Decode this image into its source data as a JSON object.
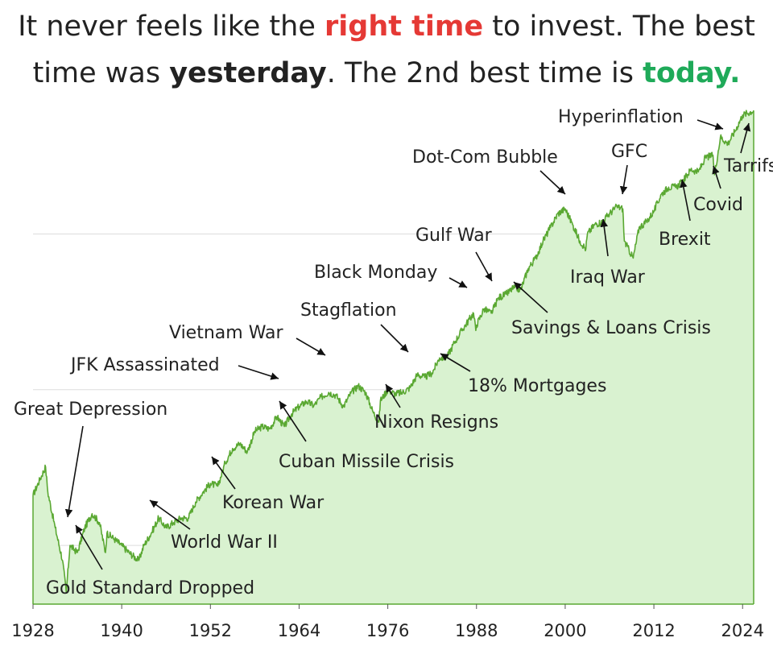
{
  "title": {
    "line1": {
      "prefix": "It never feels like the",
      "highlight": "right time",
      "suffix": "to invest. The best"
    },
    "line2": {
      "prefix": "time was",
      "emphasis": "yesterday",
      "middle": ". The 2nd best time is",
      "highlight": "today.",
      "suffix": ""
    },
    "colors": {
      "right_time": "#e53935",
      "today": "#1faa59"
    }
  },
  "chart_data": {
    "type": "area",
    "title": "",
    "xlabel": "",
    "ylabel": "",
    "xlim": [
      1928,
      2025.5
    ],
    "ylog": true,
    "grid": "horizontal",
    "legend": "none",
    "colors": {
      "line": "#5aa832",
      "fill": "#d9f2d0",
      "grid": "#dddddd",
      "axis": "#5aa832"
    },
    "x_ticks": [
      1928,
      1940,
      1952,
      1964,
      1976,
      1988,
      2000,
      2012,
      2024
    ],
    "series": [
      {
        "x": [
          1928,
          1929,
          1929.7,
          1930,
          1931,
          1932,
          1932.5,
          1933,
          1934,
          1935,
          1936,
          1937,
          1937.8,
          1938,
          1939,
          1940,
          1941,
          1942.3,
          1943,
          1944,
          1945,
          1946,
          1947,
          1948,
          1949,
          1950,
          1951,
          1952,
          1953,
          1954,
          1955,
          1956,
          1957,
          1958,
          1959,
          1960,
          1961,
          1962,
          1963,
          1964,
          1965,
          1966,
          1967,
          1968,
          1969,
          1970,
          1971,
          1972,
          1973,
          1974,
          1974.8,
          1975,
          1976,
          1977,
          1978,
          1979,
          1980,
          1981,
          1982,
          1983,
          1984,
          1985,
          1986,
          1987.6,
          1987.9,
          1988,
          1989,
          1990,
          1991,
          1992,
          1993,
          1994,
          1995,
          1996,
          1997,
          1998,
          1999,
          2000,
          2001,
          2002,
          2002.8,
          2003,
          2004,
          2005,
          2006,
          2007,
          2007.8,
          2008,
          2009.2,
          2010,
          2011,
          2012,
          2013,
          2014,
          2015,
          2016,
          2017,
          2018,
          2019,
          2020,
          2020.2,
          2021,
          2022,
          2023,
          2024,
          2025.5
        ],
        "values": [
          21,
          27,
          32,
          22,
          13,
          8,
          5,
          10,
          9,
          13,
          16,
          14,
          9,
          12,
          11,
          10,
          9,
          8,
          10,
          12,
          15,
          13,
          14,
          15,
          15,
          19,
          22,
          25,
          24,
          34,
          42,
          45,
          40,
          54,
          58,
          56,
          67,
          58,
          70,
          78,
          84,
          79,
          90,
          96,
          92,
          78,
          95,
          106,
          96,
          72,
          62,
          85,
          100,
          94,
          96,
          103,
          125,
          120,
          128,
          160,
          162,
          200,
          240,
          310,
          240,
          260,
          330,
          310,
          390,
          410,
          450,
          440,
          600,
          700,
          900,
          1100,
          1350,
          1450,
          1150,
          900,
          800,
          1000,
          1150,
          1200,
          1350,
          1500,
          1450,
          900,
          700,
          1100,
          1200,
          1400,
          1800,
          2000,
          2000,
          2200,
          2600,
          2500,
          3100,
          3200,
          2400,
          4200,
          3800,
          4600,
          5800,
          6200
        ]
      }
    ],
    "annotations": [
      {
        "text": "Great Depression",
        "x": 1932.5
      },
      {
        "text": "Gold Standard Dropped",
        "x": 1933
      },
      {
        "text": "World War II",
        "x": 1944
      },
      {
        "text": "Korean War",
        "x": 1950.5
      },
      {
        "text": "Cuban Missile Crisis",
        "x": 1962.4
      },
      {
        "text": "JFK Assassinated",
        "x": 1963.8
      },
      {
        "text": "Vietnam War",
        "x": 1965
      },
      {
        "text": "Stagflation",
        "x": 1979
      },
      {
        "text": "Nixon Resigns",
        "x": 1974.3
      },
      {
        "text": "18% Mortgages",
        "x": 1981
      },
      {
        "text": "Black Monday",
        "x": 1987.8
      },
      {
        "text": "Gulf War",
        "x": 1990.5
      },
      {
        "text": "Savings & Loans Crisis",
        "x": 1993
      },
      {
        "text": "Dot-Com Bubble",
        "x": 2000.5
      },
      {
        "text": "Iraq War",
        "x": 2003
      },
      {
        "text": "GFC",
        "x": 2008.5
      },
      {
        "text": "Brexit",
        "x": 2016.4
      },
      {
        "text": "Covid",
        "x": 2020.2
      },
      {
        "text": "Hyperinflation",
        "x": 2022
      },
      {
        "text": "Tarrifs",
        "x": 2025
      }
    ]
  }
}
